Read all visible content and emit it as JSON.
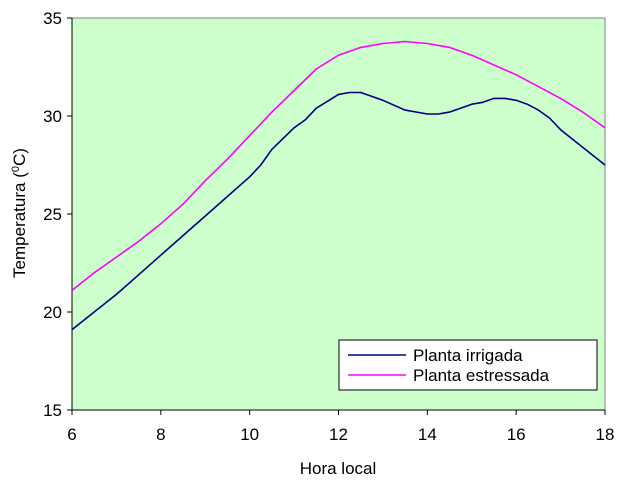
{
  "chart_data": {
    "type": "line",
    "title": "",
    "xlabel": "Hora local",
    "ylabel_main": "Temperatura (",
    "ylabel_sup": "0",
    "ylabel_end": "C)",
    "xlim": [
      6,
      18
    ],
    "ylim": [
      15,
      35
    ],
    "xticks": [
      6,
      8,
      10,
      12,
      14,
      16,
      18
    ],
    "yticks": [
      15,
      20,
      25,
      30,
      35
    ],
    "plot_background": "#ccffcc",
    "grid": false,
    "legend_position": "bottom-right",
    "series": [
      {
        "name": "Planta irrigada",
        "color": "#000080",
        "x": [
          6,
          6.5,
          7,
          7.5,
          8,
          8.5,
          9,
          9.5,
          10,
          10.25,
          10.5,
          11,
          11.25,
          11.5,
          11.75,
          12,
          12.25,
          12.5,
          12.75,
          13,
          13.5,
          14,
          14.25,
          14.5,
          15,
          15.25,
          15.5,
          15.75,
          16,
          16.25,
          16.5,
          16.75,
          17,
          17.5,
          18
        ],
        "values": [
          19.1,
          20.0,
          20.9,
          21.9,
          22.9,
          23.9,
          24.9,
          25.9,
          26.9,
          27.5,
          28.3,
          29.4,
          29.8,
          30.4,
          30.75,
          31.1,
          31.2,
          31.2,
          31.0,
          30.8,
          30.3,
          30.1,
          30.1,
          30.2,
          30.6,
          30.7,
          30.9,
          30.9,
          30.8,
          30.6,
          30.3,
          29.9,
          29.3,
          28.4,
          27.5
        ]
      },
      {
        "name": "Planta estressada",
        "color": "#ff00ff",
        "x": [
          6,
          6.5,
          7,
          7.5,
          8,
          8.5,
          9,
          9.5,
          10,
          10.5,
          11,
          11.5,
          12,
          12.5,
          13,
          13.5,
          14,
          14.5,
          15,
          15.5,
          16,
          16.5,
          17,
          17.5,
          18
        ],
        "values": [
          21.1,
          22.0,
          22.8,
          23.6,
          24.5,
          25.5,
          26.7,
          27.8,
          29.0,
          30.2,
          31.3,
          32.4,
          33.1,
          33.5,
          33.7,
          33.8,
          33.7,
          33.5,
          33.1,
          32.6,
          32.1,
          31.5,
          30.9,
          30.2,
          29.4
        ]
      }
    ]
  }
}
